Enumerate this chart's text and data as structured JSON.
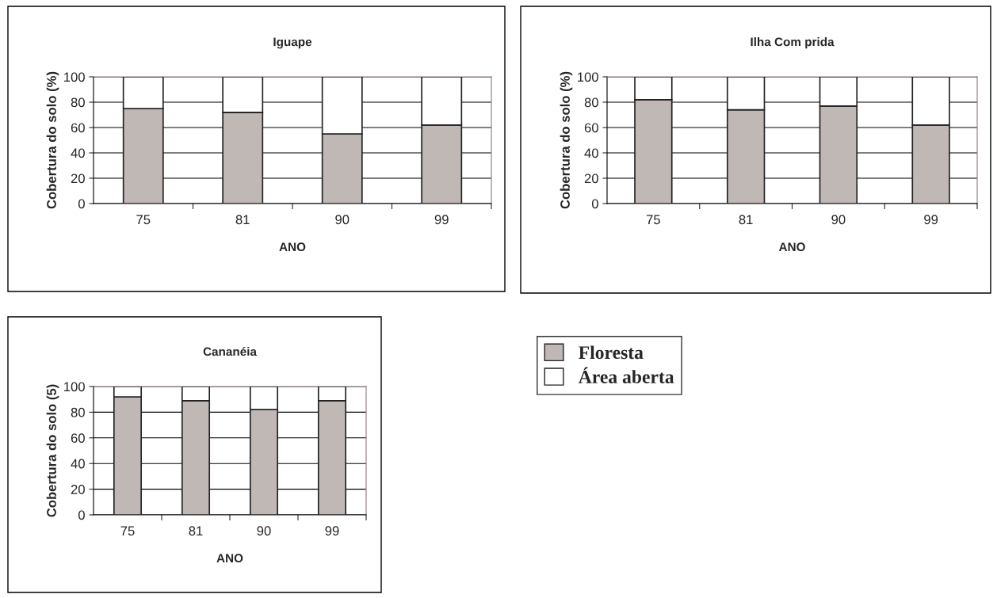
{
  "chart_data": [
    {
      "type": "bar",
      "title": "Iguape",
      "xlabel": "ANO",
      "ylabel": "Cobertura do solo (%)",
      "categories": [
        "75",
        "81",
        "90",
        "99"
      ],
      "stacked": true,
      "ylim": [
        0,
        100
      ],
      "yticks": [
        0,
        20,
        40,
        60,
        80,
        100
      ],
      "grid": "y",
      "legend": false,
      "series": [
        {
          "color": "#c0b8b5",
          "values": [
            75,
            72,
            55,
            62
          ]
        },
        {
          "color": "#ffffff",
          "values": [
            25,
            28,
            45,
            38
          ]
        }
      ]
    },
    {
      "type": "bar",
      "title": "Ilha Com prida",
      "xlabel": "ANO",
      "ylabel": "Cobertura do solo (%)",
      "categories": [
        "75",
        "81",
        "90",
        "99"
      ],
      "stacked": true,
      "ylim": [
        0,
        100
      ],
      "yticks": [
        0,
        20,
        40,
        60,
        80,
        100
      ],
      "grid": "y",
      "legend": false,
      "series": [
        {
          "color": "#c0b8b5",
          "values": [
            82,
            74,
            77,
            62
          ]
        },
        {
          "color": "#ffffff",
          "values": [
            18,
            26,
            23,
            38
          ]
        }
      ]
    },
    {
      "type": "bar",
      "title": "Cananéia",
      "xlabel": "ANO",
      "ylabel": "Cobertura do solo (5)",
      "categories": [
        "75",
        "81",
        "90",
        "99"
      ],
      "stacked": true,
      "ylim": [
        0,
        100
      ],
      "yticks": [
        0,
        20,
        40,
        60,
        80,
        100
      ],
      "grid": "y",
      "legend": "right",
      "series": [
        {
          "name": "Floresta",
          "color": "#c0b8b5",
          "values": [
            92,
            89,
            82,
            89
          ]
        },
        {
          "name": "Área aberta",
          "color": "#ffffff",
          "values": [
            8,
            11,
            18,
            11
          ]
        }
      ]
    }
  ]
}
